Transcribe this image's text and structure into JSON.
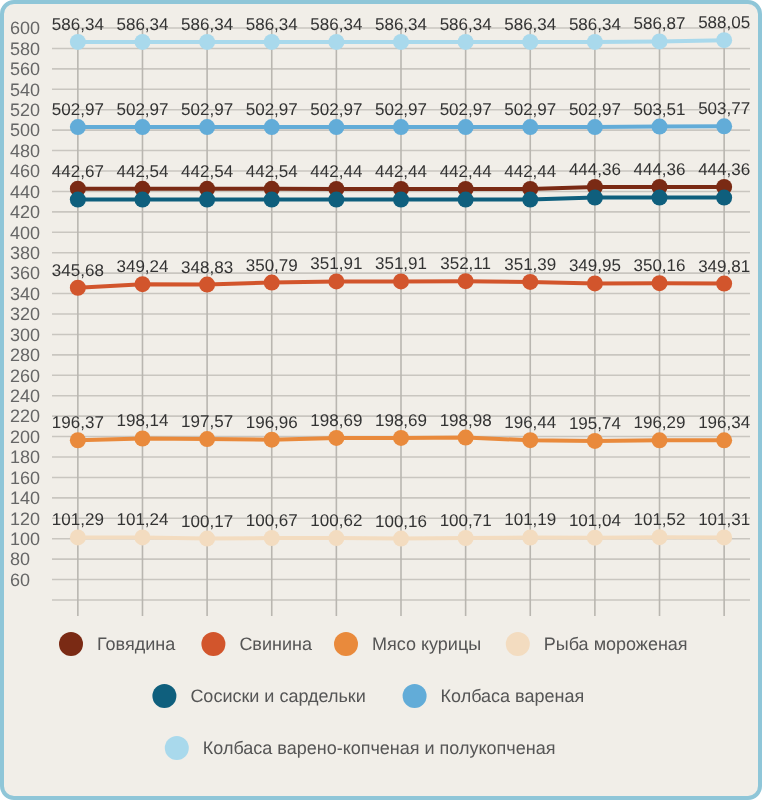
{
  "chart_data": {
    "type": "line",
    "categories": [
      null,
      null,
      null,
      null,
      null,
      null,
      null,
      null,
      null,
      null,
      null
    ],
    "ylim": [
      40,
      600
    ],
    "yticks": [
      {
        "value": 40,
        "label": null
      },
      60,
      80,
      100,
      120,
      140,
      160,
      180,
      200,
      220,
      240,
      260,
      280,
      300,
      320,
      340,
      360,
      380,
      400,
      420,
      440,
      460,
      480,
      500,
      520,
      540,
      560,
      580,
      600
    ],
    "grid": true,
    "marker": "circle",
    "legend": "bottom",
    "series": [
      {
        "name": "Говядина",
        "color": "#7a2a14",
        "values": [
          442.67,
          442.54,
          442.54,
          442.54,
          442.44,
          442.44,
          442.44,
          442.44,
          444.36,
          444.36,
          444.36
        ],
        "value_labels": [
          "442,67",
          "442,54",
          "442,54",
          "442,54",
          "442,44",
          "442,44",
          "442,44",
          "442,44",
          "444,36",
          "444,36",
          "444,36"
        ]
      },
      {
        "name": "Свинина",
        "color": "#d2552c",
        "values": [
          345.68,
          349.24,
          348.83,
          350.79,
          351.91,
          351.91,
          352.11,
          351.39,
          349.95,
          350.16,
          349.81
        ],
        "value_labels": [
          "345,68",
          "349,24",
          "348,83",
          "350,79",
          "351,91",
          "351,91",
          "352,11",
          "351,39",
          "349,95",
          "350,16",
          "349,81"
        ]
      },
      {
        "name": "Мясо курицы",
        "color": "#e98a3c",
        "values": [
          196.37,
          198.14,
          197.57,
          196.96,
          198.69,
          198.69,
          198.98,
          196.44,
          195.74,
          196.29,
          196.34
        ],
        "value_labels": [
          "196,37",
          "198,14",
          "197,57",
          "196,96",
          "198,69",
          "198,69",
          "198,98",
          "196,44",
          "195,74",
          "196,29",
          "196,34"
        ]
      },
      {
        "name": "Рыба мороженая",
        "color": "#f3dcc0",
        "values": [
          101.29,
          101.24,
          100.17,
          100.67,
          100.62,
          100.16,
          100.71,
          101.19,
          101.04,
          101.52,
          101.31
        ],
        "value_labels": [
          "101,29",
          "101,24",
          "100,17",
          "100,67",
          "100,62",
          "100,16",
          "100,71",
          "101,19",
          "101,04",
          "101,52",
          "101,31"
        ]
      },
      {
        "name": "Сосиски и сардельки",
        "color": "#0f5f7d",
        "values": [
          432,
          432,
          432,
          432,
          432,
          432,
          432,
          432,
          434,
          434,
          434
        ]
      },
      {
        "name": "Колбаса вареная",
        "color": "#62acd8",
        "values": [
          502.97,
          502.97,
          502.97,
          502.97,
          502.97,
          502.97,
          502.97,
          502.97,
          502.97,
          503.51,
          503.77
        ],
        "value_labels": [
          "502,97",
          "502,97",
          "502,97",
          "502,97",
          "502,97",
          "502,97",
          "502,97",
          "502,97",
          "502,97",
          "503,51",
          "503,77"
        ]
      },
      {
        "name": "Колбаса варено-копченая и полукопченая",
        "color": "#a9d9ec",
        "values": [
          586.34,
          586.34,
          586.34,
          586.34,
          586.34,
          586.34,
          586.34,
          586.34,
          586.34,
          586.87,
          588.05
        ],
        "value_labels": [
          "586,34",
          "586,34",
          "586,34",
          "586,34",
          "586,34",
          "586,34",
          "586,34",
          "586,34",
          "586,34",
          "586,87",
          "588,05"
        ]
      }
    ]
  }
}
